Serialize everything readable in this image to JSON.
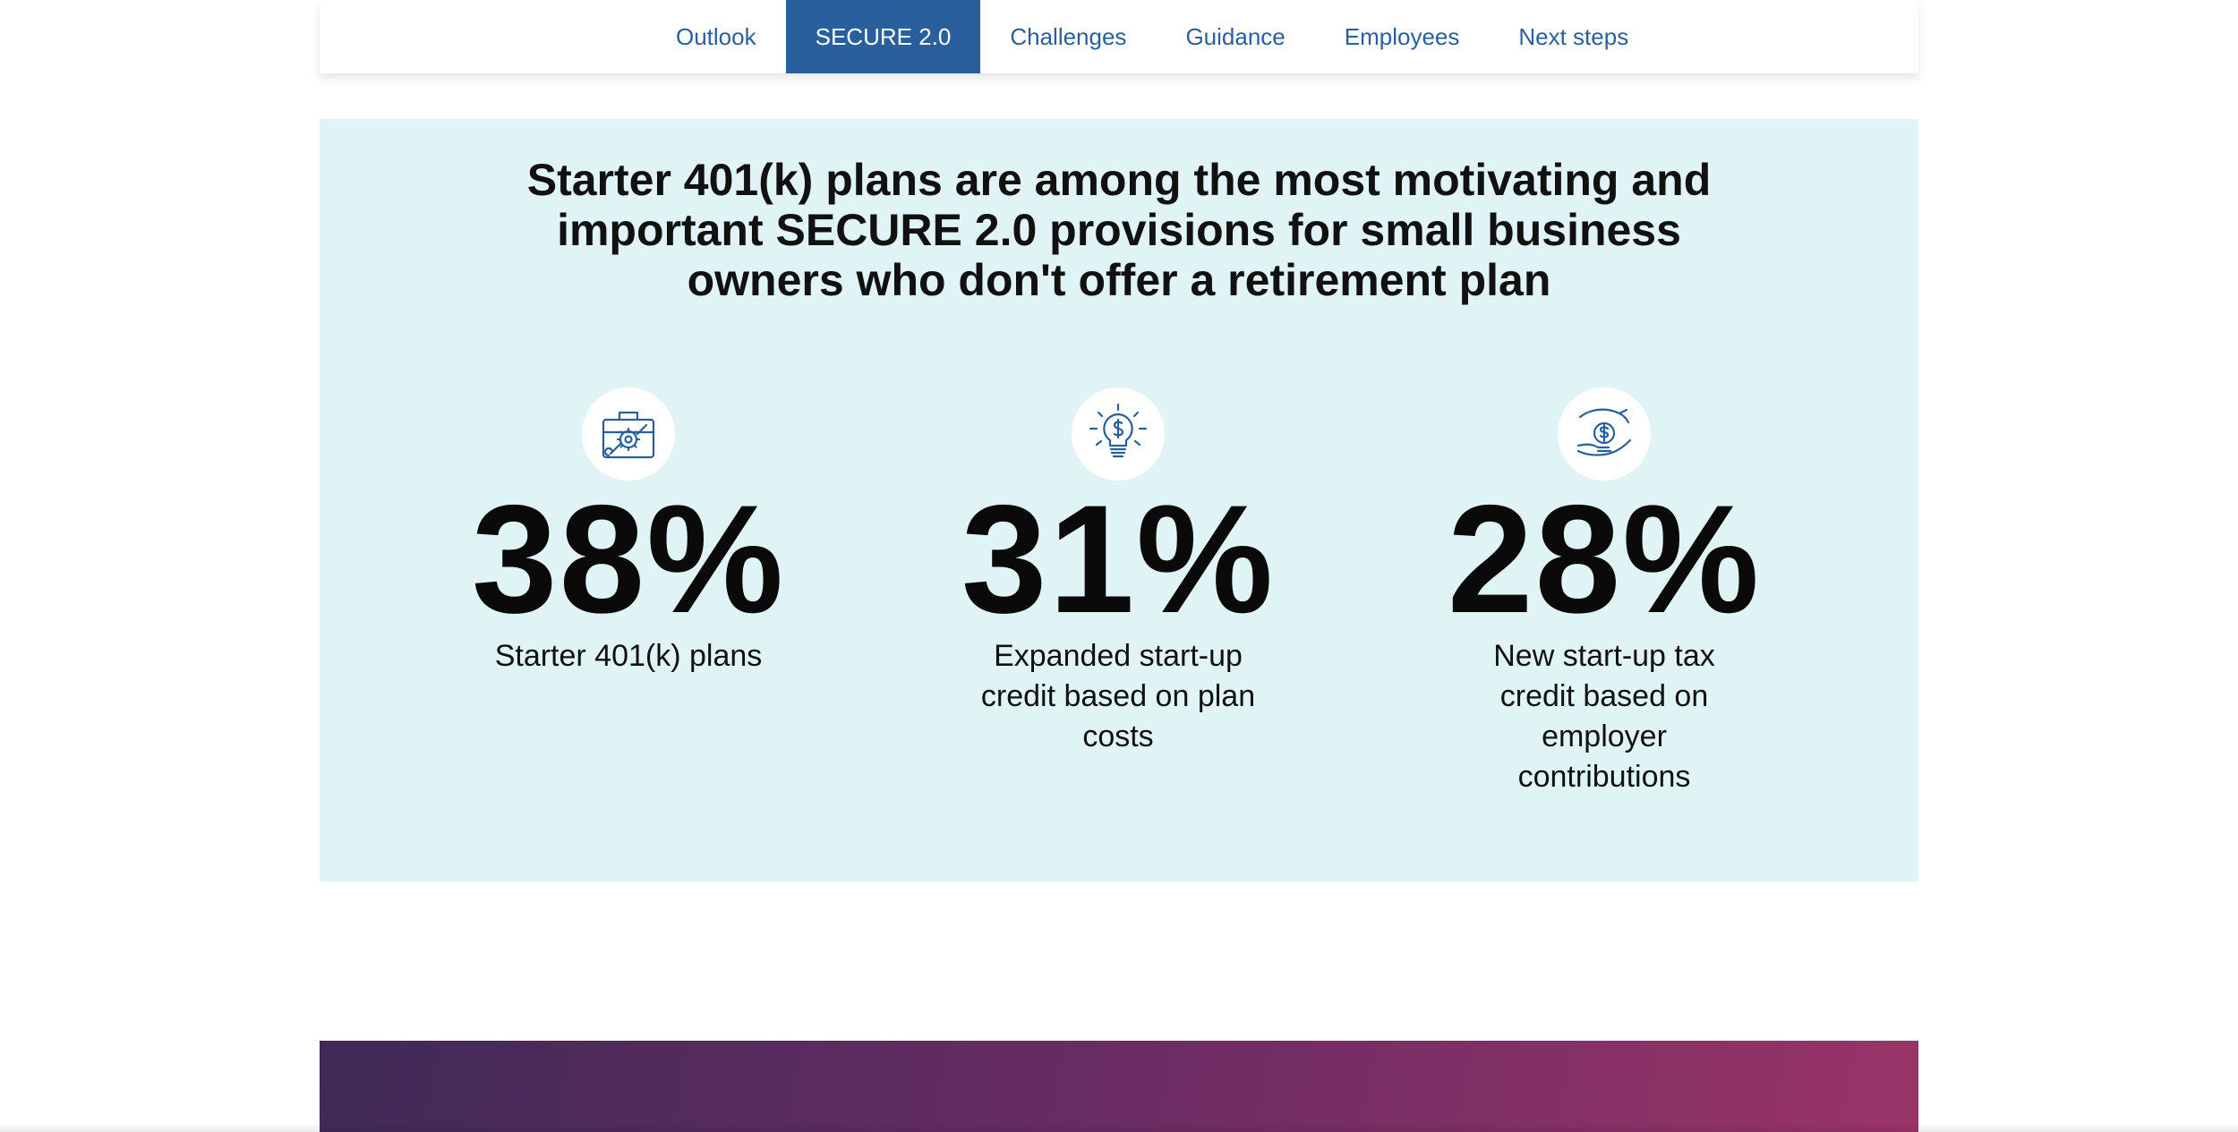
{
  "nav": {
    "items": [
      {
        "label": "Outlook"
      },
      {
        "label": "SECURE 2.0"
      },
      {
        "label": "Challenges"
      },
      {
        "label": "Guidance"
      },
      {
        "label": "Employees"
      },
      {
        "label": "Next steps"
      }
    ],
    "active_label": "SECURE 2.0"
  },
  "main": {
    "headline": "Starter 401(k) plans are among the most motivating and important SECURE 2.0 provisions for small business owners who don't offer a retirement plan",
    "stats": [
      {
        "icon": "toolbox-gear-icon",
        "value": "38%",
        "label": "Starter 401(k) plans"
      },
      {
        "icon": "lightbulb-dollar-icon",
        "value": "31%",
        "label": "Expanded start-up credit based on plan costs"
      },
      {
        "icon": "hands-coin-icon",
        "value": "28%",
        "label": "New start-up tax credit based on employer contributions"
      }
    ]
  },
  "colors": {
    "nav_accent": "#2a5f9e",
    "panel_background": "#e1f4f5",
    "banner_start": "#3f2a56",
    "banner_end": "#9a3468"
  }
}
